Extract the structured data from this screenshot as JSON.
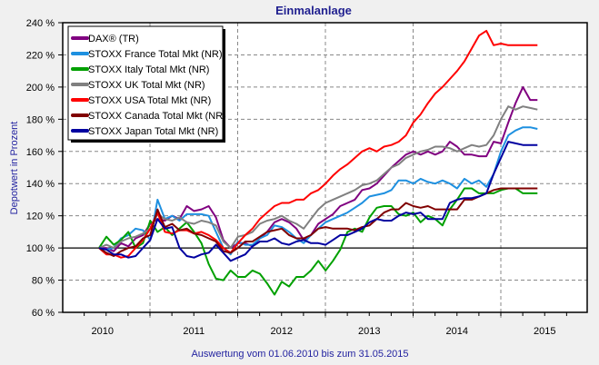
{
  "chart_data": {
    "type": "line",
    "title": "Einmalanlage",
    "xlabel": "",
    "ylabel": "Depotwert in Prozent",
    "footer": "Auswertung vom 01.06.2010 bis zum 31.05.2015",
    "ylim": [
      60,
      240
    ],
    "yticks": [
      60,
      80,
      100,
      120,
      140,
      160,
      180,
      200,
      220,
      240
    ],
    "ytick_labels": [
      "60 %",
      "80 %",
      "100 %",
      "120 %",
      "140 %",
      "160 %",
      "180 %",
      "200 %",
      "220 %",
      "240 %"
    ],
    "xlim": [
      2009.5,
      2016.0
    ],
    "xtick_labels": [
      "2010",
      "2011",
      "2012",
      "2013",
      "2014",
      "2015"
    ],
    "year_boundaries": [
      2011,
      2012,
      2013,
      2014,
      2015
    ],
    "reference_line": 100,
    "grid": true,
    "legend_position": "top-left",
    "x_start": 2010.42,
    "x_step": 0.0833,
    "series": [
      {
        "name": "DAX® (TR)",
        "color": "#800080",
        "values": [
          100,
          100,
          98,
          103,
          101,
          106,
          108,
          115,
          118,
          117,
          120,
          118,
          126,
          123,
          124,
          126,
          119,
          105,
          100,
          103,
          103,
          101,
          106,
          110,
          116,
          118,
          116,
          112,
          105,
          108,
          115,
          118,
          121,
          126,
          128,
          130,
          136,
          137,
          140,
          145,
          150,
          154,
          158,
          160,
          158,
          160,
          158,
          160,
          166,
          163,
          158,
          158,
          157,
          157,
          166,
          165,
          178,
          190,
          200,
          192,
          192
        ]
      },
      {
        "name": "STOXX France Total Mkt (NR)",
        "color": "#1e90e0",
        "values": [
          100,
          99,
          100,
          106,
          108,
          112,
          111,
          105,
          130,
          118,
          120,
          117,
          121,
          121,
          121,
          120,
          110,
          100,
          96,
          104,
          102,
          102,
          106,
          108,
          114,
          113,
          110,
          106,
          103,
          108,
          112,
          116,
          118,
          120,
          122,
          125,
          128,
          132,
          133,
          134,
          136,
          142,
          142,
          140,
          143,
          141,
          140,
          142,
          140,
          137,
          143,
          140,
          142,
          138,
          146,
          160,
          170,
          173,
          175,
          175,
          174
        ]
      },
      {
        "name": "STOXX Italy Total Mkt (NR)",
        "color": "#00a000",
        "values": [
          100,
          107,
          102,
          105,
          110,
          100,
          103,
          117,
          110,
          113,
          108,
          112,
          116,
          110,
          103,
          90,
          81,
          80,
          86,
          82,
          82,
          86,
          84,
          78,
          71,
          79,
          76,
          82,
          82,
          86,
          92,
          86,
          92,
          99,
          110,
          112,
          110,
          119,
          125,
          126,
          126,
          121,
          120,
          122,
          116,
          120,
          118,
          114,
          124,
          130,
          137,
          137,
          134,
          134,
          134,
          136,
          137,
          137,
          134,
          134,
          134
        ]
      },
      {
        "name": "STOXX UK Total Mkt (NR)",
        "color": "#808080",
        "values": [
          100,
          102,
          100,
          104,
          106,
          107,
          109,
          112,
          121,
          118,
          117,
          119,
          116,
          115,
          117,
          116,
          114,
          104,
          100,
          107,
          108,
          110,
          115,
          117,
          118,
          120,
          117,
          115,
          112,
          118,
          124,
          128,
          130,
          132,
          134,
          136,
          139,
          140,
          142,
          146,
          150,
          152,
          156,
          158,
          160,
          161,
          163,
          163,
          162,
          160,
          162,
          164,
          163,
          164,
          170,
          180,
          188,
          186,
          188,
          187,
          186
        ]
      },
      {
        "name": "STOXX USA Total Mkt (NR)",
        "color": "#ff0000",
        "values": [
          100,
          96,
          96,
          94,
          95,
          100,
          105,
          112,
          122,
          110,
          109,
          111,
          111,
          109,
          110,
          108,
          105,
          100,
          97,
          103,
          108,
          112,
          118,
          122,
          126,
          128,
          128,
          130,
          130,
          134,
          136,
          140,
          145,
          149,
          152,
          156,
          160,
          162,
          160,
          163,
          164,
          166,
          170,
          178,
          183,
          190,
          196,
          200,
          205,
          210,
          216,
          224,
          232,
          235,
          226,
          227,
          226,
          226,
          226,
          226,
          226
        ]
      },
      {
        "name": "STOXX Canada Total Mkt (NR)",
        "color": "#800000",
        "values": [
          100,
          97,
          95,
          98,
          100,
          101,
          106,
          108,
          124,
          113,
          115,
          111,
          112,
          109,
          108,
          106,
          104,
          98,
          97,
          100,
          104,
          104,
          107,
          110,
          111,
          112,
          108,
          106,
          106,
          108,
          112,
          113,
          112,
          112,
          112,
          111,
          113,
          114,
          118,
          122,
          124,
          124,
          128,
          126,
          125,
          126,
          124,
          124,
          124,
          124,
          130,
          130,
          132,
          134,
          136,
          137,
          137,
          137,
          137,
          137,
          137
        ]
      },
      {
        "name": "STOXX Japan Total Mkt (NR)",
        "color": "#0000a0",
        "values": [
          100,
          99,
          96,
          96,
          94,
          95,
          100,
          105,
          118,
          112,
          113,
          100,
          95,
          94,
          96,
          97,
          102,
          97,
          92,
          94,
          96,
          101,
          104,
          104,
          106,
          103,
          102,
          104,
          105,
          103,
          103,
          102,
          105,
          108,
          108,
          110,
          112,
          116,
          118,
          117,
          117,
          120,
          122,
          121,
          122,
          118,
          118,
          118,
          128,
          130,
          131,
          131,
          132,
          134,
          146,
          156,
          166,
          165,
          164,
          164,
          164
        ]
      }
    ]
  }
}
